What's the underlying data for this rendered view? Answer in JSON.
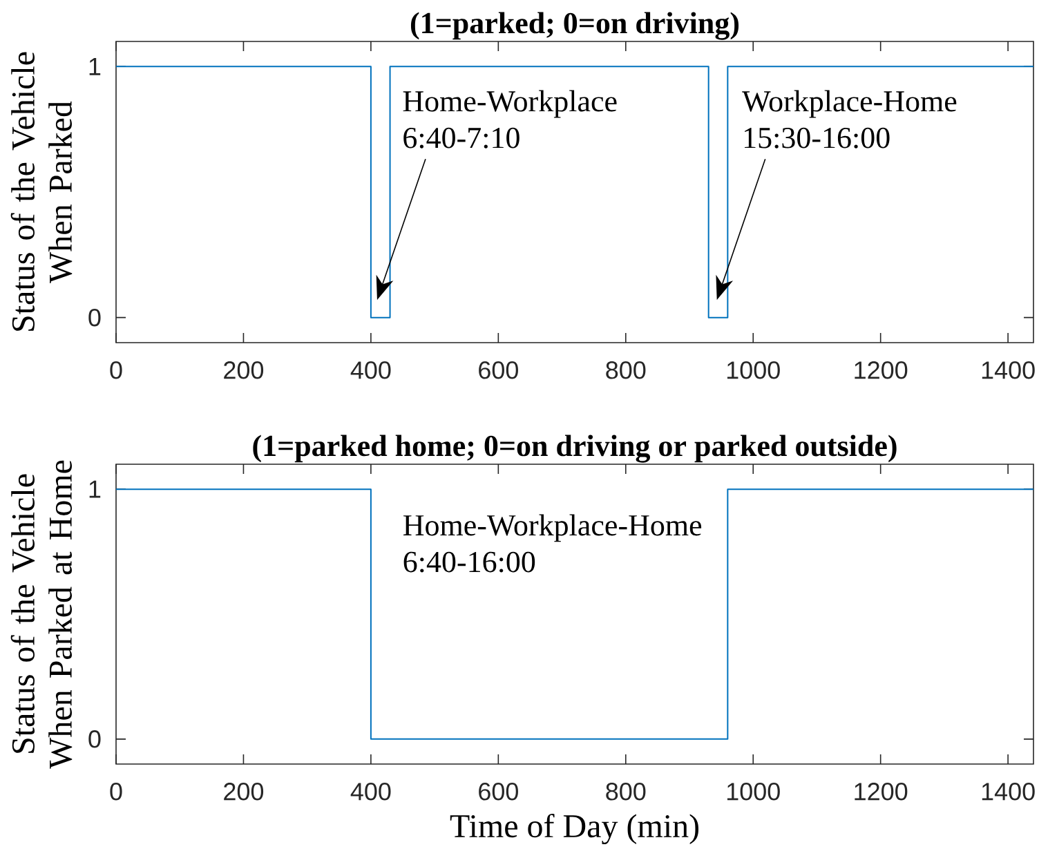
{
  "chart_data": [
    {
      "type": "step",
      "title": "(1=parked; 0=on driving)",
      "ylabel": "Status of the Vehicle When Parked",
      "x": [
        0,
        400,
        430,
        930,
        960,
        1440
      ],
      "values": [
        1,
        0,
        1,
        0,
        1,
        1
      ],
      "color": "#0072bd",
      "xlim": [
        0,
        1440
      ],
      "ylim": [
        -0.1,
        1.1
      ],
      "xticks": [
        0,
        200,
        400,
        600,
        800,
        1000,
        1200,
        1400
      ],
      "yticks": [
        0,
        1
      ],
      "annotations": [
        "Home-Workplace 6:40-7:10",
        "Workplace-Home 15:30-16:00"
      ]
    },
    {
      "type": "step",
      "title": "(1=parked home; 0=on driving or parked outside)",
      "xlabel": "Time of Day (min)",
      "ylabel": "Status of the Vehicle When Parked at Home",
      "x": [
        0,
        400,
        960,
        1440
      ],
      "values": [
        1,
        0,
        1,
        1
      ],
      "color": "#0072bd",
      "xlim": [
        0,
        1440
      ],
      "ylim": [
        -0.1,
        1.1
      ],
      "xticks": [
        0,
        200,
        400,
        600,
        800,
        1000,
        1200,
        1400
      ],
      "yticks": [
        0,
        1
      ],
      "annotations": [
        "Home-Workplace-Home 6:40-16:00"
      ]
    }
  ]
}
